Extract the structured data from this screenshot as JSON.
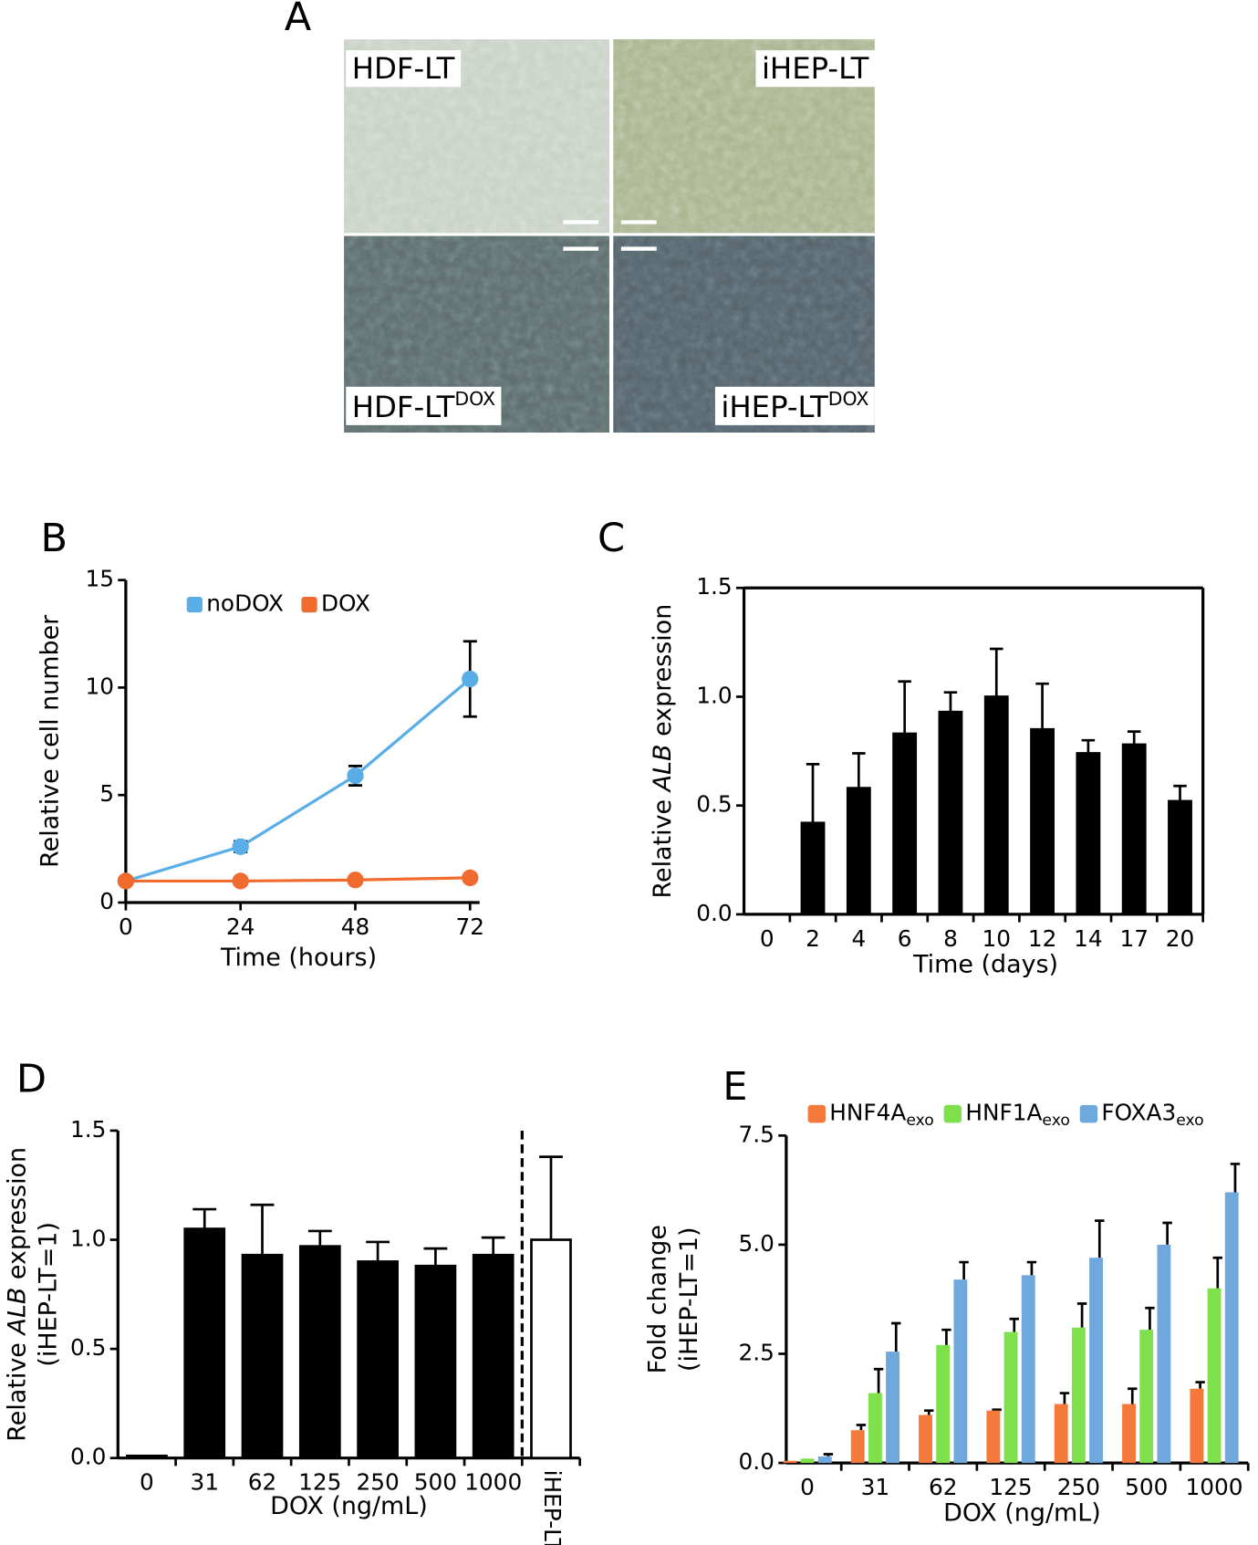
{
  "panel_a": {
    "letter": "A",
    "images": [
      {
        "label": "HDF-LT"
      },
      {
        "label": "iHEP-LT"
      },
      {
        "label": "HDF-LT",
        "sup": "DOX"
      },
      {
        "label": "iHEP-LT",
        "sup": "DOX"
      }
    ]
  },
  "chart_data": [
    {
      "type": "line",
      "letter": "B",
      "xlabel": "Time (hours)",
      "ylabel": "Relative cell number",
      "x": [
        0,
        24,
        48,
        72
      ],
      "xlim": [
        0,
        74
      ],
      "xticks": [
        0,
        24,
        48,
        72
      ],
      "ylim": [
        0,
        15
      ],
      "yticks": [
        0,
        5,
        10,
        15
      ],
      "legend": "top",
      "series": [
        {
          "name": "noDOX",
          "color": "#5aaee8",
          "values": [
            1,
            2.6,
            5.9,
            10.4
          ],
          "errors": [
            0,
            0.25,
            0.45,
            1.75
          ]
        },
        {
          "name": "DOX",
          "color": "#f26b2e",
          "values": [
            1,
            1,
            1.05,
            1.15
          ],
          "errors": [
            0,
            0.05,
            0.08,
            0.15
          ]
        }
      ]
    },
    {
      "type": "bar",
      "letter": "C",
      "xlabel": "Time (days)",
      "ylabel": {
        "before": "Relative ",
        "italic": "ALB",
        "after": " expression"
      },
      "categories": [
        "0",
        "2",
        "4",
        "6",
        "8",
        "10",
        "12",
        "14",
        "17",
        "20"
      ],
      "values": [
        0,
        0.42,
        0.58,
        0.83,
        0.93,
        1.0,
        0.85,
        0.74,
        0.78,
        0.52
      ],
      "errors": [
        0,
        0.27,
        0.16,
        0.24,
        0.09,
        0.22,
        0.21,
        0.06,
        0.06,
        0.07
      ],
      "color": "#000000",
      "frame": true,
      "ylim": [
        0,
        1.5
      ],
      "yticks": [
        {
          "value": 0,
          "label": "0.0"
        },
        {
          "value": 0.5,
          "label": "0.5"
        },
        {
          "value": 1,
          "label": "1.0"
        },
        {
          "value": 1.5,
          "label": "1.5"
        }
      ]
    },
    {
      "type": "bar",
      "letter": "D",
      "xlabel": "DOX (ng/mL)",
      "ylabel": {
        "before": "Relative ",
        "italic": "ALB",
        "after": " expression"
      },
      "ylabel2": "(iHEP-LT=1)",
      "categories": [
        "0",
        "31",
        "62",
        "125",
        "250",
        "500",
        "1000",
        "iHEP-LT"
      ],
      "values": [
        0.01,
        1.05,
        0.93,
        0.97,
        0.9,
        0.88,
        0.93,
        1.0
      ],
      "errors": [
        0,
        0.09,
        0.23,
        0.07,
        0.09,
        0.08,
        0.08,
        0.38
      ],
      "colors": [
        "#000000",
        "#000000",
        "#000000",
        "#000000",
        "#000000",
        "#000000",
        "#000000",
        "#ffffff"
      ],
      "separator_before": 7,
      "ylim": [
        0,
        1.5
      ],
      "yticks": [
        {
          "value": 0,
          "label": "0.0"
        },
        {
          "value": 0.5,
          "label": "0.5"
        },
        {
          "value": 1,
          "label": "1.0"
        },
        {
          "value": 1.5,
          "label": "1.5"
        }
      ]
    },
    {
      "type": "grouped_bar",
      "letter": "E",
      "xlabel": "DOX (ng/mL)",
      "ylabel": "Fold change",
      "ylabel2": "(iHEP-LT=1)",
      "legend": "top",
      "categories": [
        "0",
        "31",
        "62",
        "125",
        "250",
        "500",
        "1000"
      ],
      "series": [
        {
          "name": "HNF4A",
          "sub": "exo",
          "color": "#f4793a",
          "values": [
            0.05,
            0.75,
            1.1,
            1.2,
            1.35,
            1.35,
            1.7
          ],
          "errors": [
            0,
            0.12,
            0.1,
            0.02,
            0.25,
            0.35,
            0.15
          ]
        },
        {
          "name": "HNF1A",
          "sub": "exo",
          "color": "#7ee04a",
          "values": [
            0.1,
            1.6,
            2.7,
            3.0,
            3.1,
            3.05,
            4.0
          ],
          "errors": [
            0,
            0.55,
            0.35,
            0.3,
            0.55,
            0.5,
            0.7
          ]
        },
        {
          "name": "FOXA3",
          "sub": "exo",
          "color": "#6fa8dc",
          "values": [
            0.15,
            2.55,
            4.2,
            4.3,
            4.7,
            5.0,
            6.2
          ],
          "errors": [
            0.05,
            0.65,
            0.4,
            0.3,
            0.85,
            0.5,
            0.65
          ]
        }
      ],
      "ylim": [
        0,
        7.5
      ],
      "yticks": [
        {
          "value": 0,
          "label": "0.0"
        },
        2.5,
        {
          "value": 5,
          "label": "5.0"
        },
        {
          "value": 7.5,
          "label": "7.5"
        }
      ]
    }
  ]
}
